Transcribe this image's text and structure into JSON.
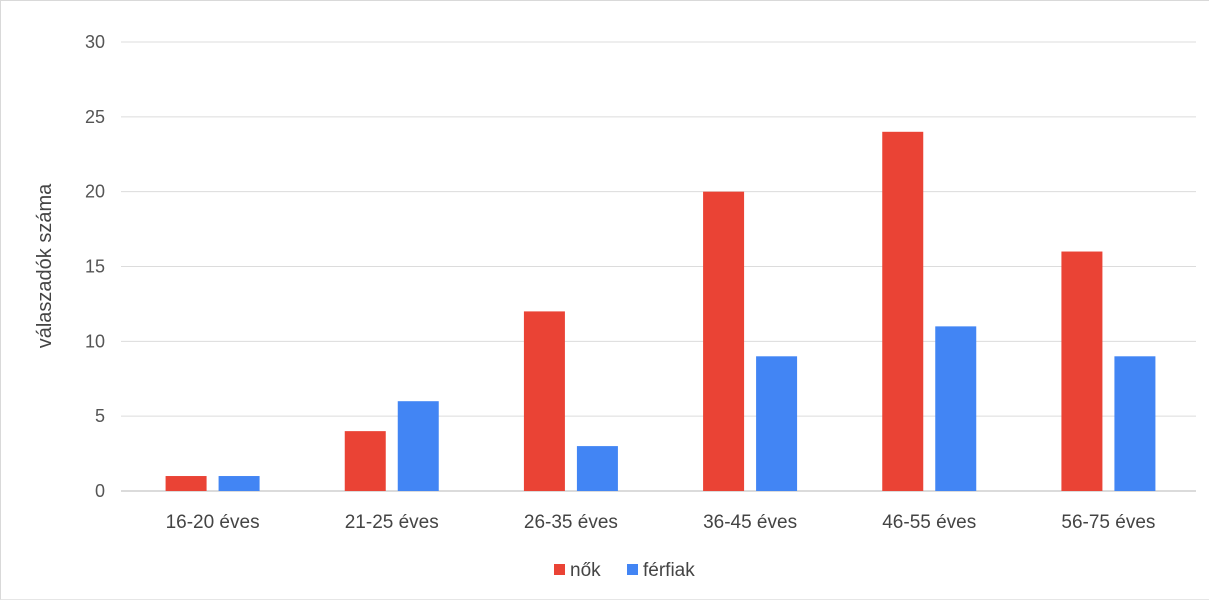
{
  "chart_data": {
    "type": "bar",
    "title": "",
    "xlabel": "",
    "ylabel": "válaszadók  száma",
    "ylim": [
      0,
      30
    ],
    "yticks": [
      0,
      5,
      10,
      15,
      20,
      25,
      30
    ],
    "grid": true,
    "legend_position": "bottom",
    "categories": [
      "16-20 éves",
      "21-25 éves",
      "26-35 éves",
      "36-45 éves",
      "46-55 éves",
      "56-75 éves"
    ],
    "series": [
      {
        "name": "nők",
        "color": "#ea4335",
        "values": [
          1,
          4,
          12,
          20,
          24,
          16
        ]
      },
      {
        "name": "férfiak",
        "color": "#4285f4",
        "values": [
          1,
          6,
          3,
          9,
          11,
          9
        ]
      }
    ]
  }
}
